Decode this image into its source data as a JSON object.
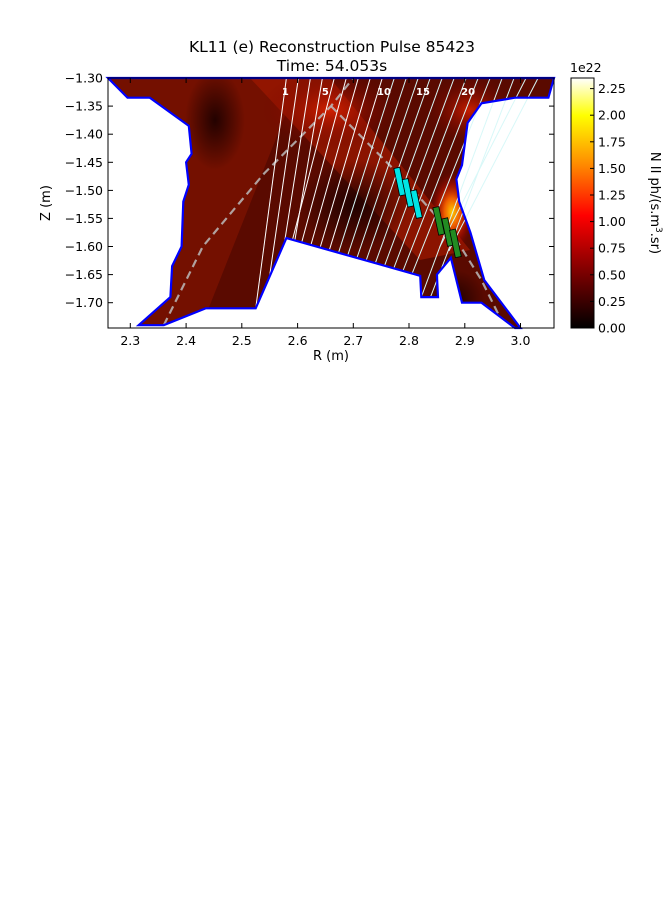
{
  "chart_data": {
    "type": "heatmap",
    "title": "KL11 (e) Reconstruction Pulse 85423",
    "subtitle": "Time: 54.053s",
    "xlabel": "R (m)",
    "ylabel": "Z (m)",
    "xlim": [
      2.26,
      3.06
    ],
    "ylim": [
      -1.745,
      -1.3
    ],
    "x_ticks": [
      "2.3",
      "2.4",
      "2.5",
      "2.6",
      "2.7",
      "2.8",
      "2.9",
      "3.0"
    ],
    "y_ticks": [
      "−1.30",
      "−1.35",
      "−1.40",
      "−1.45",
      "−1.50",
      "−1.55",
      "−1.60",
      "−1.65",
      "−1.70"
    ],
    "colorbar": {
      "label": "N II ph/(s.m",
      "label_sup": "3",
      "label_tail": ".sr)",
      "multiplier": "1e22",
      "range": [
        0,
        2.35
      ],
      "ticks": [
        "0.00",
        "0.25",
        "0.50",
        "0.75",
        "1.00",
        "1.25",
        "1.50",
        "1.75",
        "2.00",
        "2.25"
      ],
      "colormap": "hot",
      "colors": [
        "#000000",
        "#8b0000",
        "#ff0000",
        "#ff8800",
        "#ffff00",
        "#ffffff"
      ]
    },
    "channel_labels": [
      "1",
      "5",
      "10",
      "15",
      "20"
    ],
    "wall_color": "#0000ff",
    "sightline_color": "#ffffff",
    "separatrix_color": "#bbbbbb",
    "marker_colors": [
      "#00e5e5",
      "#228b22"
    ]
  }
}
